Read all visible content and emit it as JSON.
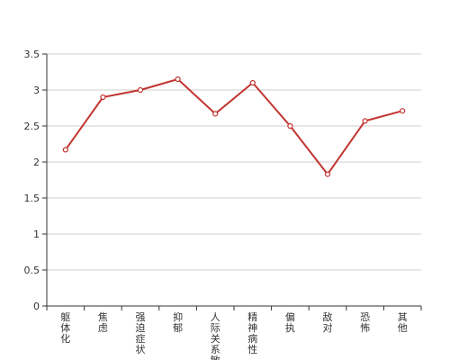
{
  "chart_data": {
    "type": "line",
    "categories": [
      "躯体化",
      "焦虑",
      "强迫症状",
      "抑郁",
      "人际关系敏感",
      "精神病性",
      "偏执",
      "敌对",
      "恐怖",
      "其他"
    ],
    "series": [
      {
        "values": [
          2.17,
          2.9,
          3.0,
          3.15,
          2.67,
          3.1,
          2.5,
          1.83,
          2.57,
          2.71
        ]
      }
    ],
    "ylim": [
      0,
      3.5
    ],
    "yticks": [
      "0",
      "0.5",
      "1",
      "1.5",
      "2",
      "2.5",
      "3",
      "3.5"
    ],
    "grid": true,
    "legend": "none",
    "colors": {
      "line": "#c23531",
      "grid": "#cccccc",
      "axis": "#333333",
      "marker_fill": "#ffffff"
    }
  }
}
